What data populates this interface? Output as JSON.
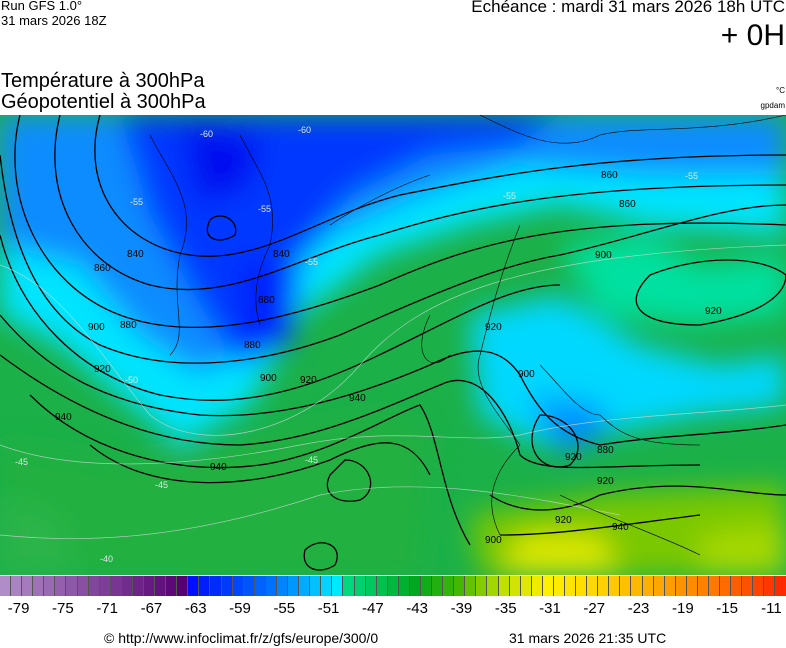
{
  "header": {
    "run": "Run GFS 1.0°",
    "run_date": "31 mars 2026 18Z",
    "echeance": "Echéance : mardi 31 mars 2026 18h UTC",
    "offset": "+ 0H",
    "title1": "Température à 300hPa",
    "title2": "Géopotentiel à 300hPa",
    "unit1": "°C",
    "unit2": "gpdam"
  },
  "map": {
    "contour_labels": [
      "860",
      "840",
      "860",
      "880",
      "900",
      "920",
      "880",
      "840",
      "880",
      "900",
      "920",
      "940",
      "940",
      "920",
      "900",
      "920",
      "940",
      "900",
      "920",
      "860",
      "880",
      "900",
      "920",
      "940",
      "920"
    ],
    "isotherm_labels": [
      "-60",
      "-55",
      "-55",
      "-55",
      "-55",
      "-50",
      "-45",
      "-45",
      "-40",
      "-45",
      "-55",
      "-60"
    ]
  },
  "colorbar": {
    "min": -80,
    "max": -10,
    "step": 1,
    "tick_labels": [
      "-79",
      "-75",
      "-71",
      "-67",
      "-63",
      "-59",
      "-55",
      "-51",
      "-47",
      "-43",
      "-39",
      "-35",
      "-31",
      "-27",
      "-23",
      "-19",
      "-15",
      "-11"
    ],
    "color_stops": [
      [
        -80,
        "#b08cc8"
      ],
      [
        -64,
        "#560072"
      ],
      [
        -63,
        "#0010ff"
      ],
      [
        -56,
        "#0070ff"
      ],
      [
        -50,
        "#00e8ff"
      ],
      [
        -49,
        "#00d880"
      ],
      [
        -43,
        "#00a820"
      ],
      [
        -39,
        "#44b800"
      ],
      [
        -35,
        "#c0e000"
      ],
      [
        -31,
        "#fff000"
      ],
      [
        -27,
        "#ffd800"
      ],
      [
        -22,
        "#ffb000"
      ],
      [
        -16,
        "#ff7800"
      ],
      [
        -10,
        "#ff2a00"
      ]
    ]
  },
  "footer": {
    "source": "© http://www.infoclimat.fr/z/gfs/europe/300/0",
    "generated": "31 mars 2026 21:35 UTC"
  }
}
